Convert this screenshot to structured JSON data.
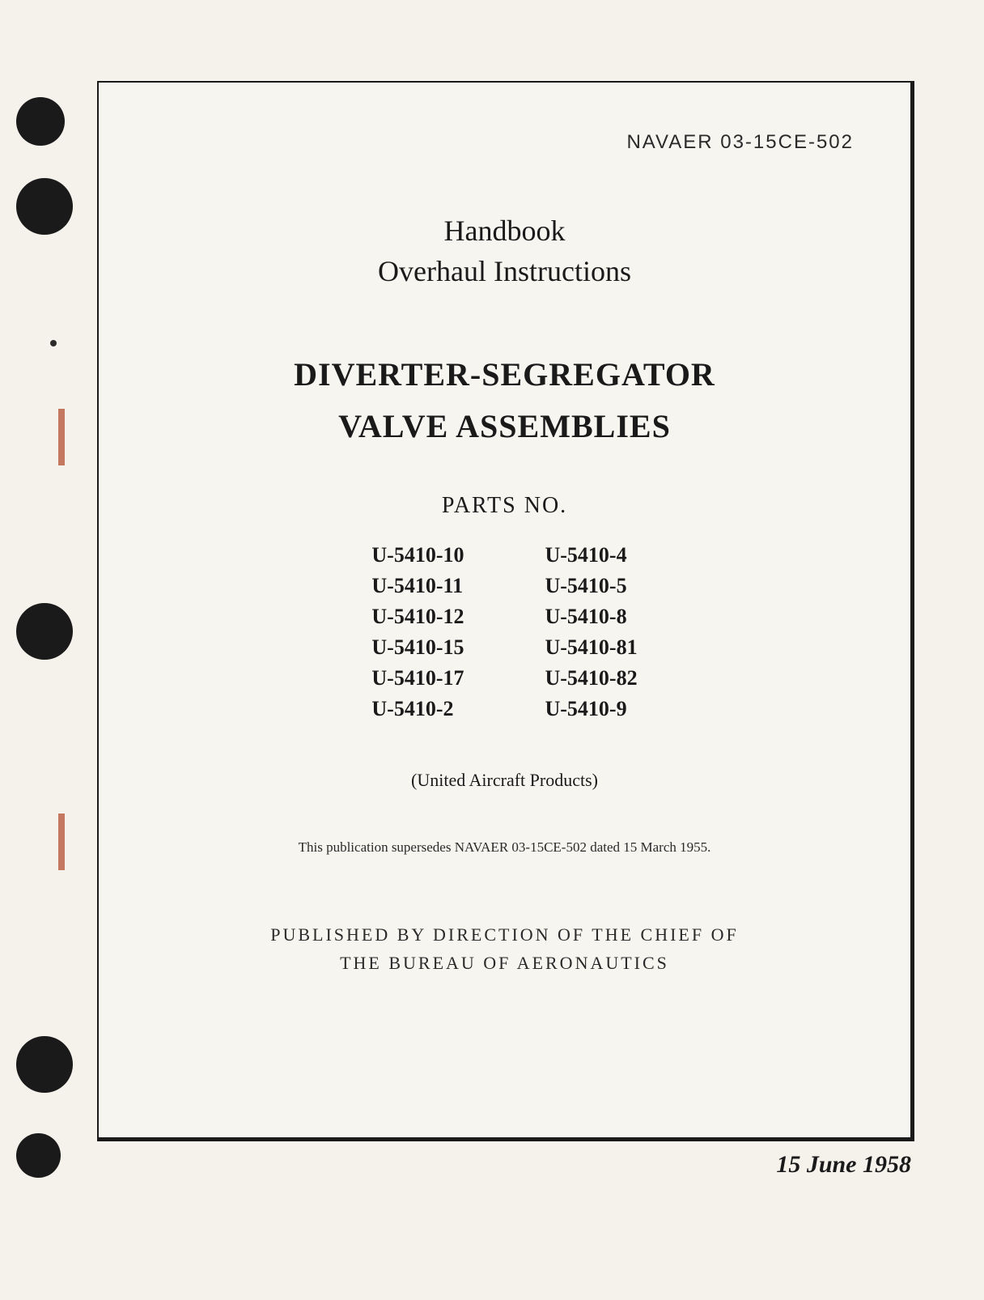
{
  "document": {
    "doc_number": "NAVAER 03-15CE-502",
    "handbook_line1": "Handbook",
    "handbook_line2": "Overhaul Instructions",
    "title_line1": "DIVERTER-SEGREGATOR",
    "title_line2": "VALVE ASSEMBLIES",
    "parts_header": "PARTS NO.",
    "parts_left": [
      "U-5410-10",
      "U-5410-11",
      "U-5410-12",
      "U-5410-15",
      "U-5410-17",
      "U-5410-2"
    ],
    "parts_right": [
      "U-5410-4",
      "U-5410-5",
      "U-5410-8",
      "U-5410-81",
      "U-5410-82",
      "U-5410-9"
    ],
    "manufacturer": "(United Aircraft Products)",
    "supersedes": "This publication supersedes NAVAER 03-15CE-502 dated 15 March 1955.",
    "publisher_line1": "PUBLISHED BY DIRECTION OF THE CHIEF OF",
    "publisher_line2": "THE BUREAU OF AERONAUTICS",
    "date": "15 June 1958"
  },
  "colors": {
    "page_bg": "#f5f2ec",
    "content_bg": "#f7f5f0",
    "text": "#1a1a1a",
    "border": "#1a1a1a",
    "punch": "#1a1a1a",
    "binding": "#c47860"
  }
}
